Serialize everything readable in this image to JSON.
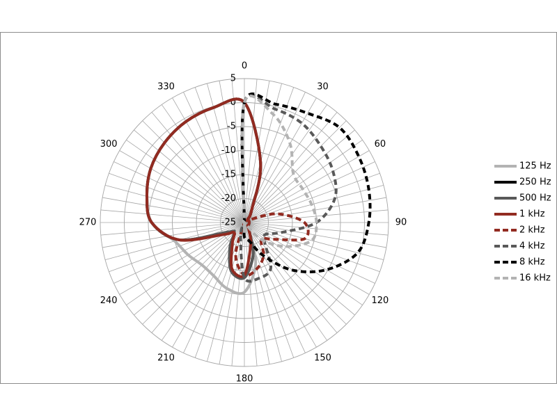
{
  "chart_data": {
    "type": "polar",
    "theta": [
      0,
      15,
      30,
      45,
      60,
      75,
      90,
      105,
      120,
      135,
      150,
      165,
      180,
      195,
      210,
      225,
      240,
      255,
      270,
      285,
      300,
      315,
      330,
      345
    ],
    "thetaticks": [
      0,
      30,
      60,
      90,
      120,
      150,
      180,
      210,
      240,
      270,
      300,
      330
    ],
    "theta_grid_step": 5,
    "rlim": [
      -25,
      5
    ],
    "rticks": [
      5,
      0,
      -5,
      -10,
      -15,
      -20,
      -25
    ],
    "grid": true,
    "legend": "right",
    "series": [
      {
        "name": "125 Hz",
        "color": "#b3b3b3",
        "dash": false,
        "values": [
          0,
          -12,
          -22,
          -24,
          -24,
          -24,
          -24,
          -24,
          -24,
          -24,
          -23,
          -16,
          -10.5,
          -10.8,
          -12.2,
          -12.5,
          -11.5,
          -10,
          -5.7,
          -4,
          -2.5,
          -1.5,
          -0.7,
          -0.2
        ]
      },
      {
        "name": "250 Hz",
        "color": "#000000",
        "dash": false,
        "values": [
          0,
          -12,
          -22,
          -24,
          -24,
          -24,
          -24,
          -24,
          -24,
          -24,
          -23,
          -18,
          -13.7,
          -14.5,
          -19,
          -22,
          -21,
          -11,
          -5.7,
          -4,
          -2.5,
          -1.5,
          -0.7,
          -0.2
        ]
      },
      {
        "name": "500 Hz",
        "color": "#595959",
        "dash": false,
        "values": [
          0,
          -12,
          -22,
          -24,
          -24,
          -24,
          -24,
          -24,
          -24,
          -24,
          -23,
          -18,
          -13.5,
          -14.5,
          -19,
          -22,
          -21,
          -11,
          -5.7,
          -4,
          -2.5,
          -1.5,
          -0.7,
          -0.2
        ]
      },
      {
        "name": "1 kHz",
        "color": "#922b21",
        "dash": false,
        "values": [
          0,
          -12,
          -22,
          -24,
          -24,
          -24,
          -24,
          -24,
          -24,
          -24,
          -23,
          -20,
          -14,
          -15,
          -20,
          -22,
          -20,
          -11,
          -5.7,
          -4,
          -2.5,
          -1.5,
          -0.7,
          -0.2
        ]
      },
      {
        "name": "2 kHz",
        "color": "#922b21",
        "dash": true,
        "values": [
          -25,
          -25,
          -25,
          -25,
          -24,
          -18,
          -12.5,
          -12,
          -18,
          -20,
          -17,
          -15,
          -14,
          -18,
          -25,
          -25,
          -25,
          -25,
          -25,
          -25,
          -25,
          -25,
          -25,
          -25
        ]
      },
      {
        "name": "4 kHz",
        "color": "#595959",
        "dash": true,
        "values": [
          0,
          -0.5,
          -1.1,
          -2.5,
          -3.7,
          -5.5,
          -10,
          -17,
          -20,
          -19,
          -14,
          -13,
          -13.5,
          -22,
          -25,
          -25,
          -25,
          -25,
          -25,
          -25,
          -25,
          -25,
          -25,
          -25
        ]
      },
      {
        "name": "8 kHz",
        "color": "#000000",
        "dash": true,
        "values": [
          0,
          0.5,
          1.3,
          3,
          2.5,
          1.8,
          0.9,
          -0.6,
          -5.3,
          -11,
          -17,
          -21,
          -22,
          -25,
          -25,
          -25,
          -25,
          -25,
          -25,
          -25,
          -25,
          -25,
          -25,
          -25
        ]
      },
      {
        "name": "16 kHz",
        "color": "#b3b3b3",
        "dash": true,
        "values": [
          0,
          -1.7,
          -6,
          -10.6,
          -11,
          -10.5,
          -10,
          -10.5,
          -15,
          -20,
          -25,
          -25,
          -25,
          -25,
          -25,
          -25,
          -25,
          -25,
          -25,
          -25,
          -25,
          -25,
          -25,
          -25
        ]
      }
    ]
  }
}
